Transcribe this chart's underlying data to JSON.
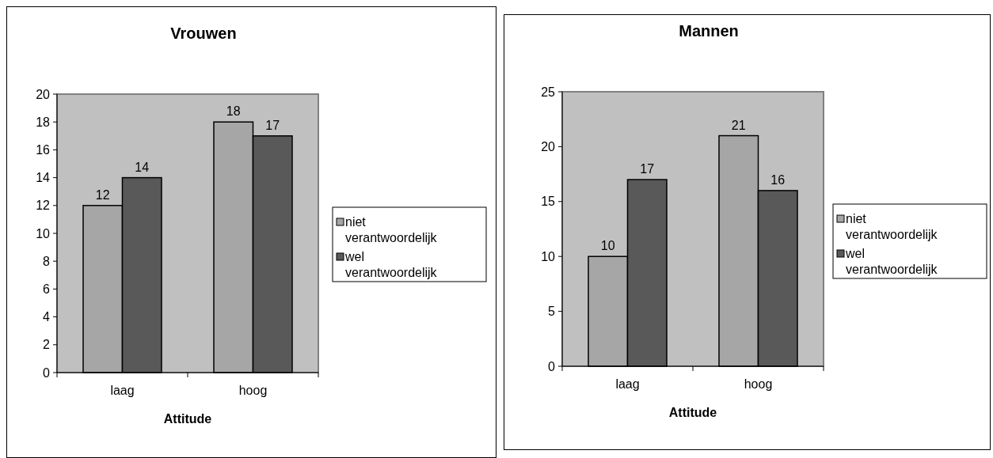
{
  "chart_data": [
    {
      "type": "bar",
      "title": "Vrouwen",
      "xlabel": "Attitude",
      "categories": [
        "laag",
        "hoog"
      ],
      "series": [
        {
          "name": "niet verantwoordelijk",
          "color": "#a6a6a6",
          "values": [
            12,
            18
          ]
        },
        {
          "name": "wel verantwoordelijk",
          "color": "#595959",
          "values": [
            14,
            17
          ]
        }
      ],
      "ylim": [
        0,
        20
      ],
      "yticks": [
        0,
        2,
        4,
        6,
        8,
        10,
        12,
        14,
        16,
        18,
        20
      ],
      "data_labels": true,
      "legend": "right",
      "grid": false
    },
    {
      "type": "bar",
      "title": "Mannen",
      "xlabel": "Attitude",
      "categories": [
        "laag",
        "hoog"
      ],
      "series": [
        {
          "name": "niet verantwoordelijk",
          "color": "#a6a6a6",
          "values": [
            10,
            21
          ]
        },
        {
          "name": "wel verantwoordelijk",
          "color": "#595959",
          "values": [
            17,
            16
          ]
        }
      ],
      "ylim": [
        0,
        25
      ],
      "yticks": [
        0,
        5,
        10,
        15,
        20,
        25
      ],
      "data_labels": true,
      "legend": "right",
      "grid": false
    }
  ]
}
